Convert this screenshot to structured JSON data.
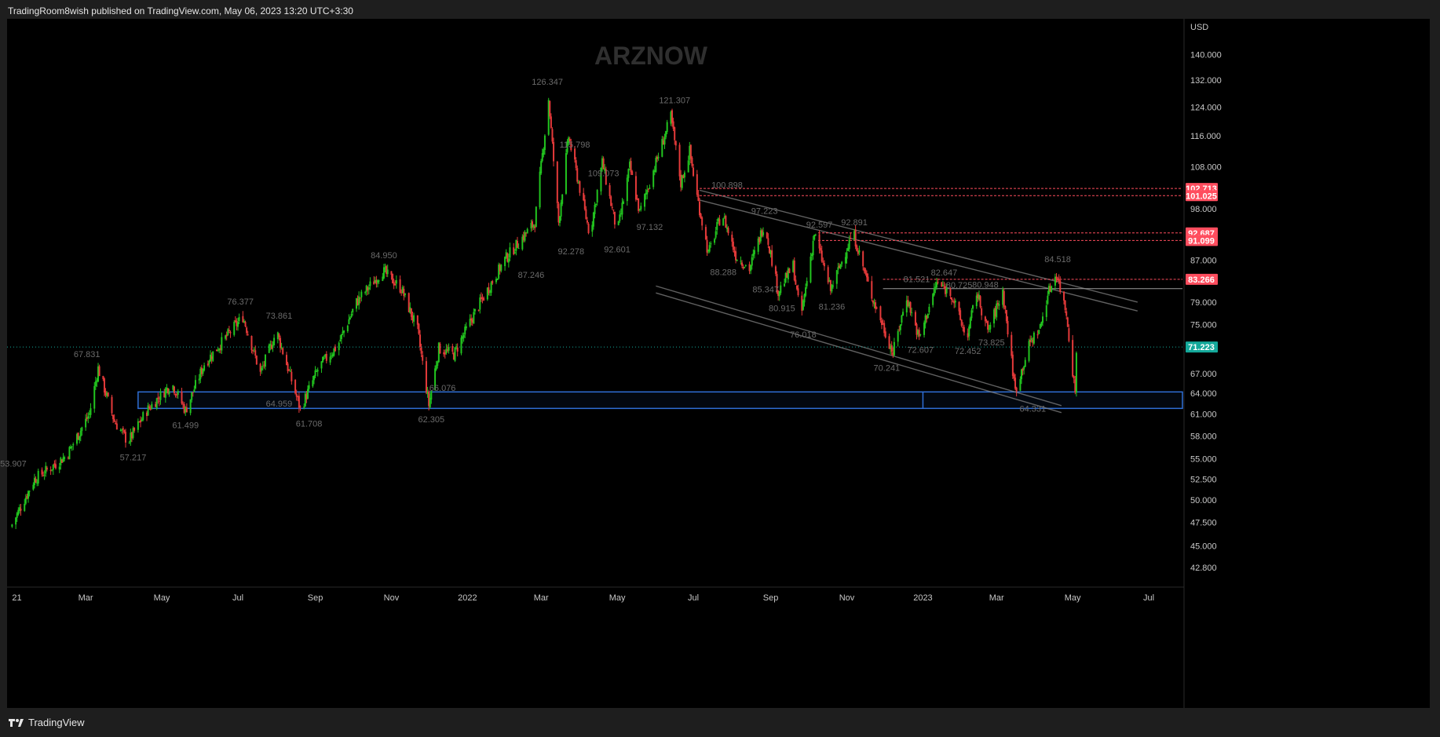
{
  "publisher_line": "TradingRoom8wish published on TradingView.com, May 06, 2023 13:20 UTC+3:30",
  "footer_brand": "TradingView",
  "watermark": "ARZNOW",
  "icons": {
    "footer_logo": "tradingview-logo-icon"
  },
  "colors": {
    "background": "#000000",
    "up": "#22c51f",
    "down": "#e53a3a",
    "axis_text": "#c8c8c8",
    "annotation_text": "#6a6a6a",
    "resistance": "#ff4d5e",
    "zone": "#2f6fd6",
    "channel": "#8a8a8a",
    "current_price": "#14a89a"
  },
  "chart_data": {
    "type": "candlestick",
    "currency": "USD",
    "y_scale": "log",
    "ylim": [
      40.9,
      152.0
    ],
    "x_range": [
      "2020-12-28",
      "2023-07-28"
    ],
    "y_ticks": [
      "140.000",
      "132.000",
      "124.000",
      "116.000",
      "108.000",
      "98.000",
      "87.000",
      "79.000",
      "75.000",
      "67.000",
      "64.000",
      "61.000",
      "58.000",
      "55.000",
      "52.500",
      "50.000",
      "47.500",
      "45.000",
      "42.800"
    ],
    "x_ticks": [
      {
        "label": "21",
        "date": "2021-01-01"
      },
      {
        "label": "Mar",
        "date": "2021-03-01"
      },
      {
        "label": "May",
        "date": "2021-05-01"
      },
      {
        "label": "Jul",
        "date": "2021-07-01"
      },
      {
        "label": "Sep",
        "date": "2021-09-01"
      },
      {
        "label": "Nov",
        "date": "2021-11-01"
      },
      {
        "label": "2022",
        "date": "2022-01-01"
      },
      {
        "label": "Mar",
        "date": "2022-03-01"
      },
      {
        "label": "May",
        "date": "2022-05-01"
      },
      {
        "label": "Jul",
        "date": "2022-07-01"
      },
      {
        "label": "Sep",
        "date": "2022-09-01"
      },
      {
        "label": "Nov",
        "date": "2022-11-01"
      },
      {
        "label": "2023",
        "date": "2023-01-01"
      },
      {
        "label": "Mar",
        "date": "2023-03-01"
      },
      {
        "label": "May",
        "date": "2023-05-01"
      },
      {
        "label": "Jul",
        "date": "2023-07-01"
      }
    ],
    "price_path": [
      [
        "2021-01-01",
        47.0
      ],
      [
        "2021-01-20",
        52.5
      ],
      [
        "2021-02-02",
        53.9
      ],
      [
        "2021-02-15",
        55.5
      ],
      [
        "2021-03-05",
        61.0
      ],
      [
        "2021-03-12",
        67.8
      ],
      [
        "2021-03-25",
        60.0
      ],
      [
        "2021-04-05",
        57.2
      ],
      [
        "2021-04-20",
        61.5
      ],
      [
        "2021-05-10",
        65.5
      ],
      [
        "2021-05-21",
        61.5
      ],
      [
        "2021-06-05",
        68.5
      ],
      [
        "2021-06-25",
        73.5
      ],
      [
        "2021-07-06",
        76.4
      ],
      [
        "2021-07-20",
        67.0
      ],
      [
        "2021-08-02",
        73.9
      ],
      [
        "2021-08-21",
        61.7
      ],
      [
        "2021-09-05",
        68.0
      ],
      [
        "2021-09-20",
        71.5
      ],
      [
        "2021-10-05",
        79.0
      ],
      [
        "2021-10-26",
        84.95
      ],
      [
        "2021-11-10",
        81.5
      ],
      [
        "2021-11-23",
        74.0
      ],
      [
        "2021-12-02",
        62.3
      ],
      [
        "2021-12-10",
        71.0
      ],
      [
        "2021-12-22",
        70.0
      ],
      [
        "2022-01-10",
        78.0
      ],
      [
        "2022-02-01",
        87.2
      ],
      [
        "2022-02-25",
        95.0
      ],
      [
        "2022-03-08",
        126.3
      ],
      [
        "2022-03-16",
        95.0
      ],
      [
        "2022-03-24",
        115.8
      ],
      [
        "2022-04-10",
        92.3
      ],
      [
        "2022-04-20",
        109.1
      ],
      [
        "2022-05-02",
        92.6
      ],
      [
        "2022-05-12",
        108.0
      ],
      [
        "2022-05-20",
        97.1
      ],
      [
        "2022-06-14",
        121.3
      ],
      [
        "2022-06-22",
        104.0
      ],
      [
        "2022-06-29",
        112.0
      ],
      [
        "2022-07-05",
        100.9
      ],
      [
        "2022-07-14",
        88.3
      ],
      [
        "2022-07-25",
        97.2
      ],
      [
        "2022-08-05",
        88.0
      ],
      [
        "2022-08-16",
        85.3
      ],
      [
        "2022-08-28",
        95.0
      ],
      [
        "2022-09-08",
        80.9
      ],
      [
        "2022-09-20",
        86.0
      ],
      [
        "2022-09-26",
        76.0
      ],
      [
        "2022-10-07",
        92.6
      ],
      [
        "2022-10-20",
        81.2
      ],
      [
        "2022-11-07",
        92.9
      ],
      [
        "2022-11-20",
        81.5
      ],
      [
        "2022-12-09",
        70.24
      ],
      [
        "2022-12-20",
        80.0
      ],
      [
        "2022-12-30",
        72.6
      ],
      [
        "2023-01-13",
        82.6
      ],
      [
        "2023-01-25",
        80.5
      ],
      [
        "2023-02-06",
        72.45
      ],
      [
        "2023-02-14",
        80.9
      ],
      [
        "2023-02-23",
        73.8
      ],
      [
        "2023-03-07",
        81.0
      ],
      [
        "2023-03-17",
        64.4
      ],
      [
        "2023-03-29",
        72.0
      ],
      [
        "2023-04-06",
        74.5
      ],
      [
        "2023-04-12",
        80.5
      ],
      [
        "2023-04-19",
        84.5
      ],
      [
        "2023-04-27",
        77.0
      ],
      [
        "2023-05-04",
        64.0
      ],
      [
        "2023-05-05",
        71.2
      ]
    ],
    "current_price": 71.223,
    "price_labels": [
      {
        "value": "102.713",
        "price": 102.713
      },
      {
        "value": "101.025",
        "price": 101.025
      },
      {
        "value": "92.687",
        "price": 92.687
      },
      {
        "value": "91.099",
        "price": 91.099
      },
      {
        "value": "83.266",
        "price": 83.266
      },
      {
        "value": "71.223",
        "price": 71.223,
        "current": true
      }
    ],
    "resistance_lines": [
      {
        "from": "2022-07-06",
        "price": 102.713
      },
      {
        "from": "2022-07-06",
        "price": 101.025
      },
      {
        "from": "2022-10-09",
        "price": 92.687
      },
      {
        "from": "2022-10-09",
        "price": 91.099
      },
      {
        "from": "2022-11-30",
        "price": 83.266
      }
    ],
    "horizontal_lines": [
      {
        "from": "2022-11-30",
        "price": 81.5
      }
    ],
    "support_zone": {
      "from": "2021-04-12",
      "low": 61.8,
      "high": 64.2,
      "divider": "2023-01-01"
    },
    "channels": [
      {
        "from": [
          "2022-07-06",
          102.3
        ],
        "to": [
          "2023-06-22",
          79.0
        ]
      },
      {
        "from": [
          "2022-07-06",
          100.0
        ],
        "to": [
          "2023-06-22",
          77.4
        ]
      },
      {
        "from": [
          "2022-06-01",
          82.0
        ],
        "to": [
          "2023-04-22",
          62.2
        ]
      },
      {
        "from": [
          "2022-06-01",
          80.7
        ],
        "to": [
          "2023-04-22",
          61.2
        ]
      }
    ],
    "annotations": [
      {
        "text": "53.907",
        "date": "2021-01-02",
        "price": 54.4
      },
      {
        "text": "67.831",
        "date": "2021-03-02",
        "price": 70.1
      },
      {
        "text": "57.217",
        "date": "2021-04-08",
        "price": 55.2
      },
      {
        "text": "61.499",
        "date": "2021-05-20",
        "price": 59.5
      },
      {
        "text": "76.377",
        "date": "2021-07-03",
        "price": 79.1
      },
      {
        "text": "73.861",
        "date": "2021-08-03",
        "price": 76.6
      },
      {
        "text": "64.959",
        "date": "2021-08-03",
        "price": 62.5
      },
      {
        "text": "61.708",
        "date": "2021-08-27",
        "price": 59.7
      },
      {
        "text": "84.950",
        "date": "2021-10-26",
        "price": 88.1
      },
      {
        "text": "66.076",
        "date": "2021-12-12",
        "price": 64.8
      },
      {
        "text": "62.305",
        "date": "2021-12-03",
        "price": 60.3
      },
      {
        "text": "126.347",
        "date": "2022-03-06",
        "price": 131.5
      },
      {
        "text": "115.798",
        "date": "2022-03-28",
        "price": 113.7
      },
      {
        "text": "109.073",
        "date": "2022-04-20",
        "price": 106.4
      },
      {
        "text": "92.278",
        "date": "2022-03-25",
        "price": 88.9
      },
      {
        "text": "92.601",
        "date": "2022-05-01",
        "price": 89.3
      },
      {
        "text": "87.246",
        "date": "2022-02-21",
        "price": 84.2
      },
      {
        "text": "97.132",
        "date": "2022-05-27",
        "price": 94.0
      },
      {
        "text": "121.307",
        "date": "2022-06-16",
        "price": 126.0
      },
      {
        "text": "100.898",
        "date": "2022-07-28",
        "price": 103.6
      },
      {
        "text": "97.223",
        "date": "2022-08-27",
        "price": 97.6
      },
      {
        "text": "88.288",
        "date": "2022-07-25",
        "price": 84.7
      },
      {
        "text": "85.347",
        "date": "2022-08-28",
        "price": 81.4
      },
      {
        "text": "92.597",
        "date": "2022-10-10",
        "price": 94.5
      },
      {
        "text": "92.891",
        "date": "2022-11-07",
        "price": 95.0
      },
      {
        "text": "80.915",
        "date": "2022-09-10",
        "price": 77.9
      },
      {
        "text": "81.236",
        "date": "2022-10-20",
        "price": 78.2
      },
      {
        "text": "76.018",
        "date": "2022-09-27",
        "price": 73.3
      },
      {
        "text": "81.521",
        "date": "2022-12-27",
        "price": 83.3
      },
      {
        "text": "82.647",
        "date": "2023-01-18",
        "price": 84.6
      },
      {
        "text": "80.725",
        "date": "2023-01-30",
        "price": 82.2
      },
      {
        "text": "80.948",
        "date": "2023-02-20",
        "price": 82.3
      },
      {
        "text": "72.607",
        "date": "2022-12-30",
        "price": 70.8
      },
      {
        "text": "72.452",
        "date": "2023-02-06",
        "price": 70.6
      },
      {
        "text": "73.825",
        "date": "2023-02-25",
        "price": 72.0
      },
      {
        "text": "70.241",
        "date": "2022-12-03",
        "price": 67.9
      },
      {
        "text": "84.518",
        "date": "2023-04-19",
        "price": 87.3
      },
      {
        "text": "64.331",
        "date": "2023-03-30",
        "price": 61.8
      }
    ]
  }
}
